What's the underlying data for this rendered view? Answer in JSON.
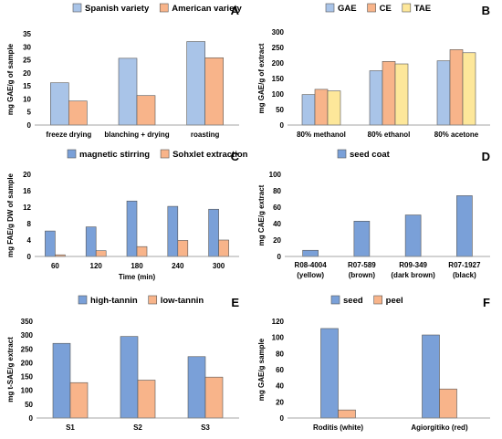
{
  "chart_data": [
    {
      "panel": "A",
      "type": "bar",
      "ylabel": "mg GAE/g of sample",
      "ylim": [
        0,
        35
      ],
      "yticks": [
        0,
        5,
        10,
        15,
        20,
        25,
        30,
        35
      ],
      "categories": [
        "freeze drying",
        "blanching + drying",
        "roasting"
      ],
      "series": [
        {
          "name": "Spanish variety",
          "color": "#a9c4e8",
          "values": [
            16.2,
            25.6,
            32.0
          ]
        },
        {
          "name": "American variety",
          "color": "#f8b48a",
          "values": [
            9.2,
            11.3,
            25.8
          ]
        }
      ]
    },
    {
      "panel": "B",
      "type": "bar",
      "ylabel": "mg GAE/g of extract",
      "ylim": [
        0,
        300
      ],
      "yticks": [
        0,
        50,
        100,
        150,
        200,
        250,
        300
      ],
      "categories": [
        "80% methanol",
        "80% ethanol",
        "80% acetone"
      ],
      "series": [
        {
          "name": "GAE",
          "color": "#a9c4e8",
          "values": [
            98,
            175,
            207
          ]
        },
        {
          "name": "CE",
          "color": "#f8b48a",
          "values": [
            115,
            205,
            243
          ]
        },
        {
          "name": "TAE",
          "color": "#fde79a",
          "values": [
            110,
            197,
            233
          ]
        }
      ]
    },
    {
      "panel": "C",
      "type": "bar",
      "ylabel": "mg FAE/g DW of sample",
      "xlabel": "Time (min)",
      "ylim": [
        0,
        20
      ],
      "yticks": [
        0,
        4,
        8,
        12,
        16,
        20
      ],
      "categories": [
        "60",
        "120",
        "180",
        "240",
        "300"
      ],
      "series": [
        {
          "name": "magnetic stirring",
          "color": "#7aa0d8",
          "values": [
            6.2,
            7.2,
            13.5,
            12.2,
            11.5
          ]
        },
        {
          "name": "Sohxlet extraction",
          "color": "#f8b48a",
          "values": [
            0.4,
            1.4,
            2.4,
            3.9,
            4.0
          ]
        }
      ]
    },
    {
      "panel": "D",
      "type": "bar",
      "ylabel": "mg CAE/g extract",
      "ylim": [
        0,
        100
      ],
      "yticks": [
        0,
        20,
        40,
        60,
        80,
        100
      ],
      "categories": [
        "R08-4004 (yellow)",
        "R07-589 (brown)",
        "R09-349 (dark brown)",
        "R07-1927 (black)"
      ],
      "series": [
        {
          "name": "seed coat",
          "color": "#7aa0d8",
          "values": [
            7.5,
            43,
            50.5,
            74
          ]
        }
      ]
    },
    {
      "panel": "E",
      "type": "bar",
      "ylabel": "mg t-SAE/g extract",
      "ylim": [
        0,
        350
      ],
      "yticks": [
        0,
        50,
        100,
        150,
        200,
        250,
        300,
        350
      ],
      "categories": [
        "S1",
        "S2",
        "S3"
      ],
      "series": [
        {
          "name": "high-tannin",
          "color": "#7aa0d8",
          "values": [
            270,
            295,
            222
          ]
        },
        {
          "name": "low-tannin",
          "color": "#f8b48a",
          "values": [
            128,
            137,
            148
          ]
        }
      ]
    },
    {
      "panel": "F",
      "type": "bar",
      "ylabel": "mg GAE/g sample",
      "ylim": [
        0,
        120
      ],
      "yticks": [
        0,
        20,
        40,
        60,
        80,
        100,
        120
      ],
      "categories": [
        "Roditis (white)",
        "Agiorgitiko (red)"
      ],
      "series": [
        {
          "name": "seed",
          "color": "#7aa0d8",
          "values": [
            111,
            103
          ]
        },
        {
          "name": "peel",
          "color": "#f8b48a",
          "values": [
            10,
            36
          ]
        }
      ]
    }
  ]
}
